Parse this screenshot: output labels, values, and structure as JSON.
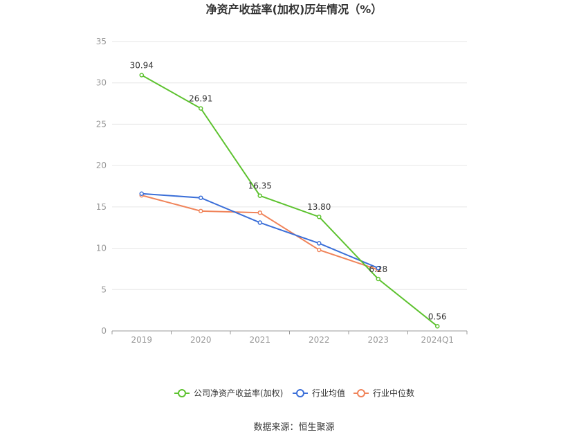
{
  "chart_data": {
    "type": "line",
    "title": "净资产收益率(加权)历年情况（%）",
    "categories": [
      "2019",
      "2020",
      "2021",
      "2022",
      "2023",
      "2024Q1"
    ],
    "ylim": [
      0,
      35
    ],
    "yticks": [
      0,
      5,
      10,
      15,
      20,
      25,
      30,
      35
    ],
    "grid": true,
    "legend_position": "bottom",
    "series": [
      {
        "name": "公司净资产收益率(加权)",
        "color": "#5dc22f",
        "values": [
          30.94,
          26.91,
          16.35,
          13.8,
          6.28,
          0.56
        ],
        "labels": [
          "30.94",
          "26.91",
          "16.35",
          "13.80",
          "6.28",
          "0.56"
        ]
      },
      {
        "name": "行业均值",
        "color": "#3b6fd8",
        "values": [
          16.6,
          16.1,
          13.1,
          10.6,
          7.6,
          null
        ]
      },
      {
        "name": "行业中位数",
        "color": "#f0845a",
        "values": [
          16.4,
          14.5,
          14.3,
          9.8,
          7.4,
          null
        ]
      }
    ],
    "source": "数据来源：恒生聚源"
  }
}
